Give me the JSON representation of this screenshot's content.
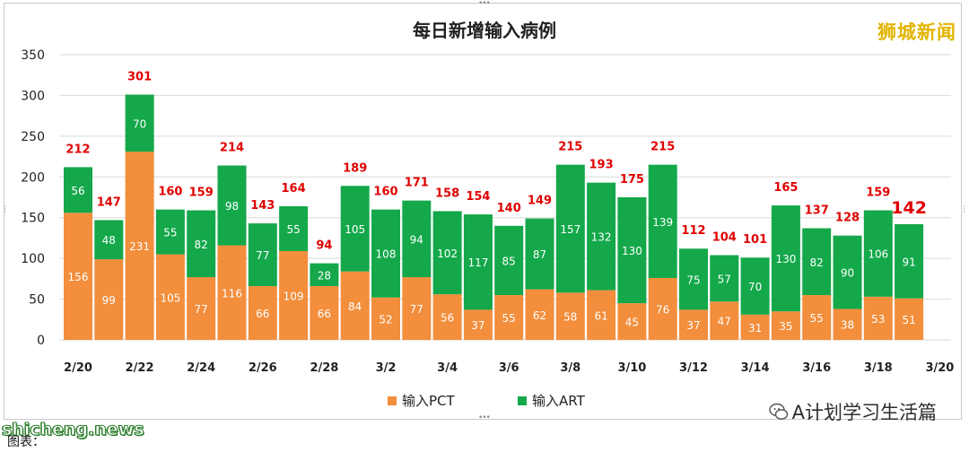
{
  "watermark": "狮城新闻",
  "brand": "A计划学习生活篇",
  "site": "shicheng.news",
  "caption": "图表：",
  "colors": {
    "pct": "#f28e3c",
    "art": "#14a84a",
    "total_label": "#e00000",
    "grid": "#d9d9d9"
  },
  "chart_data": {
    "type": "bar",
    "stacked": true,
    "title": "每日新增输入病例",
    "ylim": [
      0,
      350
    ],
    "yticks": [
      0,
      50,
      100,
      150,
      200,
      250,
      300,
      350
    ],
    "grid": true,
    "legend_position": "bottom",
    "categories": [
      "2/20",
      "2/21",
      "2/22",
      "2/23",
      "2/24",
      "2/25",
      "2/26",
      "2/27",
      "2/28",
      "3/1",
      "3/2",
      "3/3",
      "3/4",
      "3/5",
      "3/6",
      "3/7",
      "3/8",
      "3/9",
      "3/10",
      "3/11",
      "3/12",
      "3/13",
      "3/14",
      "3/15",
      "3/16",
      "3/17",
      "3/18",
      "3/19"
    ],
    "xtick_labels": [
      "2/20",
      "2/22",
      "2/24",
      "2/26",
      "2/28",
      "3/2",
      "3/4",
      "3/6",
      "3/8",
      "3/10",
      "3/12",
      "3/14",
      "3/16",
      "3/18",
      "3/20"
    ],
    "series": [
      {
        "name": "输入PCT",
        "values": [
          156,
          99,
          231,
          105,
          77,
          116,
          66,
          109,
          66,
          84,
          52,
          77,
          56,
          37,
          55,
          62,
          58,
          61,
          45,
          76,
          37,
          47,
          31,
          35,
          55,
          38,
          53,
          51
        ]
      },
      {
        "name": "输入ART",
        "values": [
          56,
          48,
          70,
          55,
          82,
          98,
          77,
          55,
          28,
          105,
          108,
          94,
          102,
          117,
          85,
          87,
          157,
          132,
          130,
          139,
          75,
          57,
          70,
          130,
          82,
          90,
          106,
          91
        ]
      }
    ],
    "totals": [
      212,
      147,
      301,
      160,
      159,
      214,
      143,
      164,
      94,
      189,
      160,
      171,
      158,
      154,
      140,
      149,
      215,
      193,
      175,
      215,
      112,
      104,
      101,
      165,
      137,
      128,
      159,
      142
    ]
  }
}
